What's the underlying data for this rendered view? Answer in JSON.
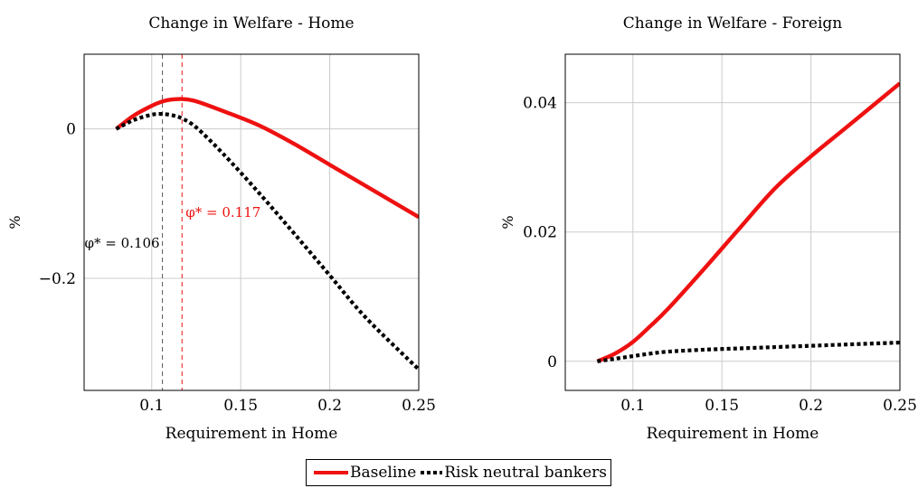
{
  "legend": {
    "placement": "bottom-center",
    "entries": [
      {
        "name": "Baseline",
        "color": "#ee1111",
        "style": "solid"
      },
      {
        "name": "Risk neutral bankers",
        "color": "#000000",
        "style": "dotted"
      }
    ]
  },
  "chart_data": [
    {
      "type": "line",
      "title": "Change in Welfare - Home",
      "xlabel": "Requirement in Home",
      "ylabel": "%",
      "xlim": [
        0.062,
        0.25
      ],
      "ylim": [
        -0.35,
        0.1
      ],
      "xticks": [
        0.1,
        0.15,
        0.2,
        0.25
      ],
      "xtick_labels": [
        "0.1",
        "0.15",
        "0.2",
        "0.25"
      ],
      "yticks": [
        0,
        -0.2
      ],
      "ytick_labels": [
        "0",
        "−0.2"
      ],
      "grid": true,
      "series": [
        {
          "name": "Baseline",
          "color": "#ee1111",
          "style": "solid",
          "x": [
            0.08,
            0.09,
            0.1,
            0.105,
            0.11,
            0.117,
            0.125,
            0.14,
            0.16,
            0.18,
            0.2,
            0.22,
            0.25
          ],
          "y": [
            0.0,
            0.018,
            0.031,
            0.036,
            0.039,
            0.04,
            0.037,
            0.024,
            0.005,
            -0.02,
            -0.048,
            -0.076,
            -0.118
          ]
        },
        {
          "name": "Risk neutral bankers",
          "color": "#000000",
          "style": "dotted",
          "x": [
            0.08,
            0.09,
            0.1,
            0.106,
            0.112,
            0.117,
            0.125,
            0.14,
            0.16,
            0.18,
            0.2,
            0.22,
            0.25
          ],
          "y": [
            0.0,
            0.012,
            0.019,
            0.02,
            0.018,
            0.014,
            0.002,
            -0.033,
            -0.085,
            -0.14,
            -0.196,
            -0.252,
            -0.322
          ]
        }
      ],
      "vlines": [
        {
          "x": 0.106,
          "color": "#555555",
          "label": "φ* = 0.106"
        },
        {
          "x": 0.117,
          "color": "#ee1111",
          "label": "φ* = 0.117"
        }
      ]
    },
    {
      "type": "line",
      "title": "Change in Welfare - Foreign",
      "xlabel": "Requirement in Home",
      "ylabel": "%",
      "xlim": [
        0.062,
        0.25
      ],
      "ylim": [
        -0.0045,
        0.0475
      ],
      "xticks": [
        0.1,
        0.15,
        0.2,
        0.25
      ],
      "xtick_labels": [
        "0.1",
        "0.15",
        "0.2",
        "0.25"
      ],
      "yticks": [
        0,
        0.02,
        0.04
      ],
      "ytick_labels": [
        "0",
        "0.02",
        "0.04"
      ],
      "grid": true,
      "series": [
        {
          "name": "Baseline",
          "color": "#ee1111",
          "style": "solid",
          "x": [
            0.08,
            0.09,
            0.1,
            0.11,
            0.12,
            0.14,
            0.16,
            0.18,
            0.2,
            0.22,
            0.25
          ],
          "y": [
            0.0,
            0.0012,
            0.003,
            0.0055,
            0.0082,
            0.0143,
            0.0206,
            0.0268,
            0.0317,
            0.0362,
            0.043
          ]
        },
        {
          "name": "Risk neutral bankers",
          "color": "#000000",
          "style": "dotted",
          "x": [
            0.08,
            0.09,
            0.1,
            0.11,
            0.12,
            0.14,
            0.16,
            0.18,
            0.2,
            0.22,
            0.25
          ],
          "y": [
            0.0,
            0.0004,
            0.0008,
            0.0012,
            0.0015,
            0.0018,
            0.002,
            0.0022,
            0.0024,
            0.0026,
            0.0029
          ]
        }
      ]
    }
  ]
}
